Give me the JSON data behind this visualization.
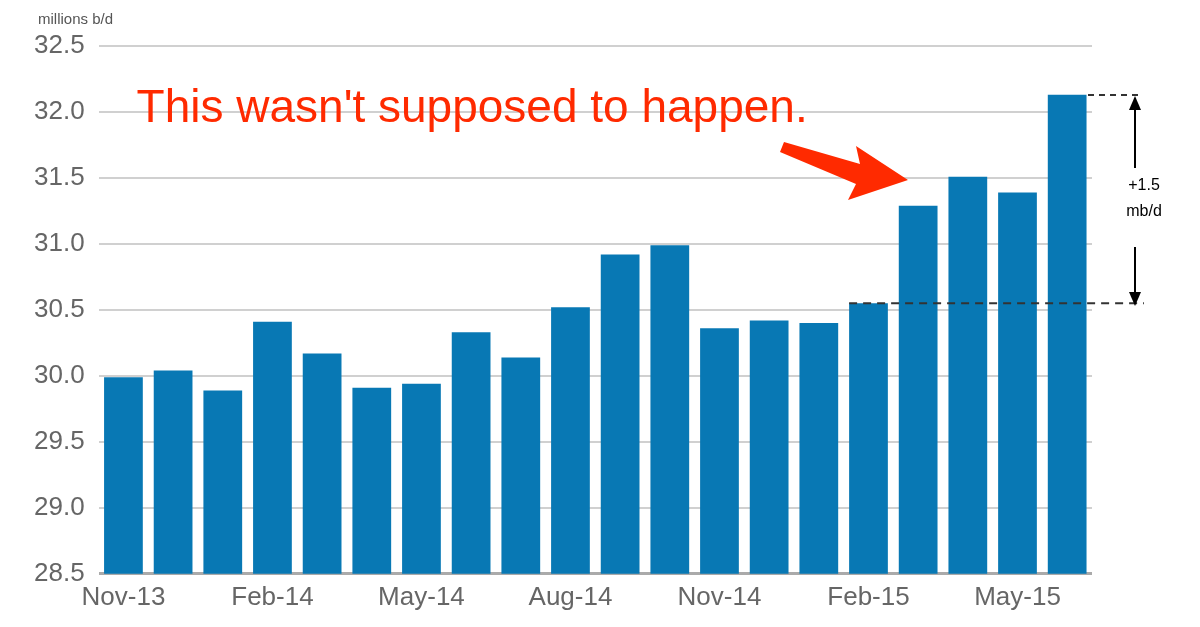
{
  "chart_data": {
    "type": "bar",
    "ylabel": "millions b/d",
    "categories": [
      "Nov-13",
      null,
      null,
      "Feb-14",
      null,
      null,
      "May-14",
      null,
      null,
      "Aug-14",
      null,
      null,
      "Nov-14",
      null,
      null,
      "Feb-15",
      null,
      null,
      "May-15",
      null
    ],
    "values": [
      29.99,
      30.04,
      29.89,
      30.41,
      30.17,
      29.91,
      29.94,
      30.33,
      30.14,
      30.52,
      30.92,
      30.99,
      30.36,
      30.42,
      30.4,
      30.55,
      31.29,
      31.51,
      31.39,
      32.13
    ],
    "color": "#0878b4",
    "ylim": [
      28.5,
      32.5
    ],
    "yticks": [
      {
        "value": 28.5,
        "label": "28.5"
      },
      {
        "value": 29,
        "label": "29.0"
      },
      {
        "value": 29.5,
        "label": "29.5"
      },
      {
        "value": 30,
        "label": "30.0"
      },
      {
        "value": 30.5,
        "label": "30.5"
      },
      {
        "value": 31,
        "label": "31.0"
      },
      {
        "value": 31.5,
        "label": "31.5"
      },
      {
        "value": 32,
        "label": "32.0"
      },
      {
        "value": 32.5,
        "label": "32.5"
      }
    ],
    "grid": "y",
    "ref_lines": [
      {
        "axis": "y",
        "value": 30.55,
        "line_style": "dashed",
        "color": "#333333"
      }
    ],
    "annotations": [
      "This wasn't supposed to happen.",
      "+1.5 mb/d"
    ]
  }
}
